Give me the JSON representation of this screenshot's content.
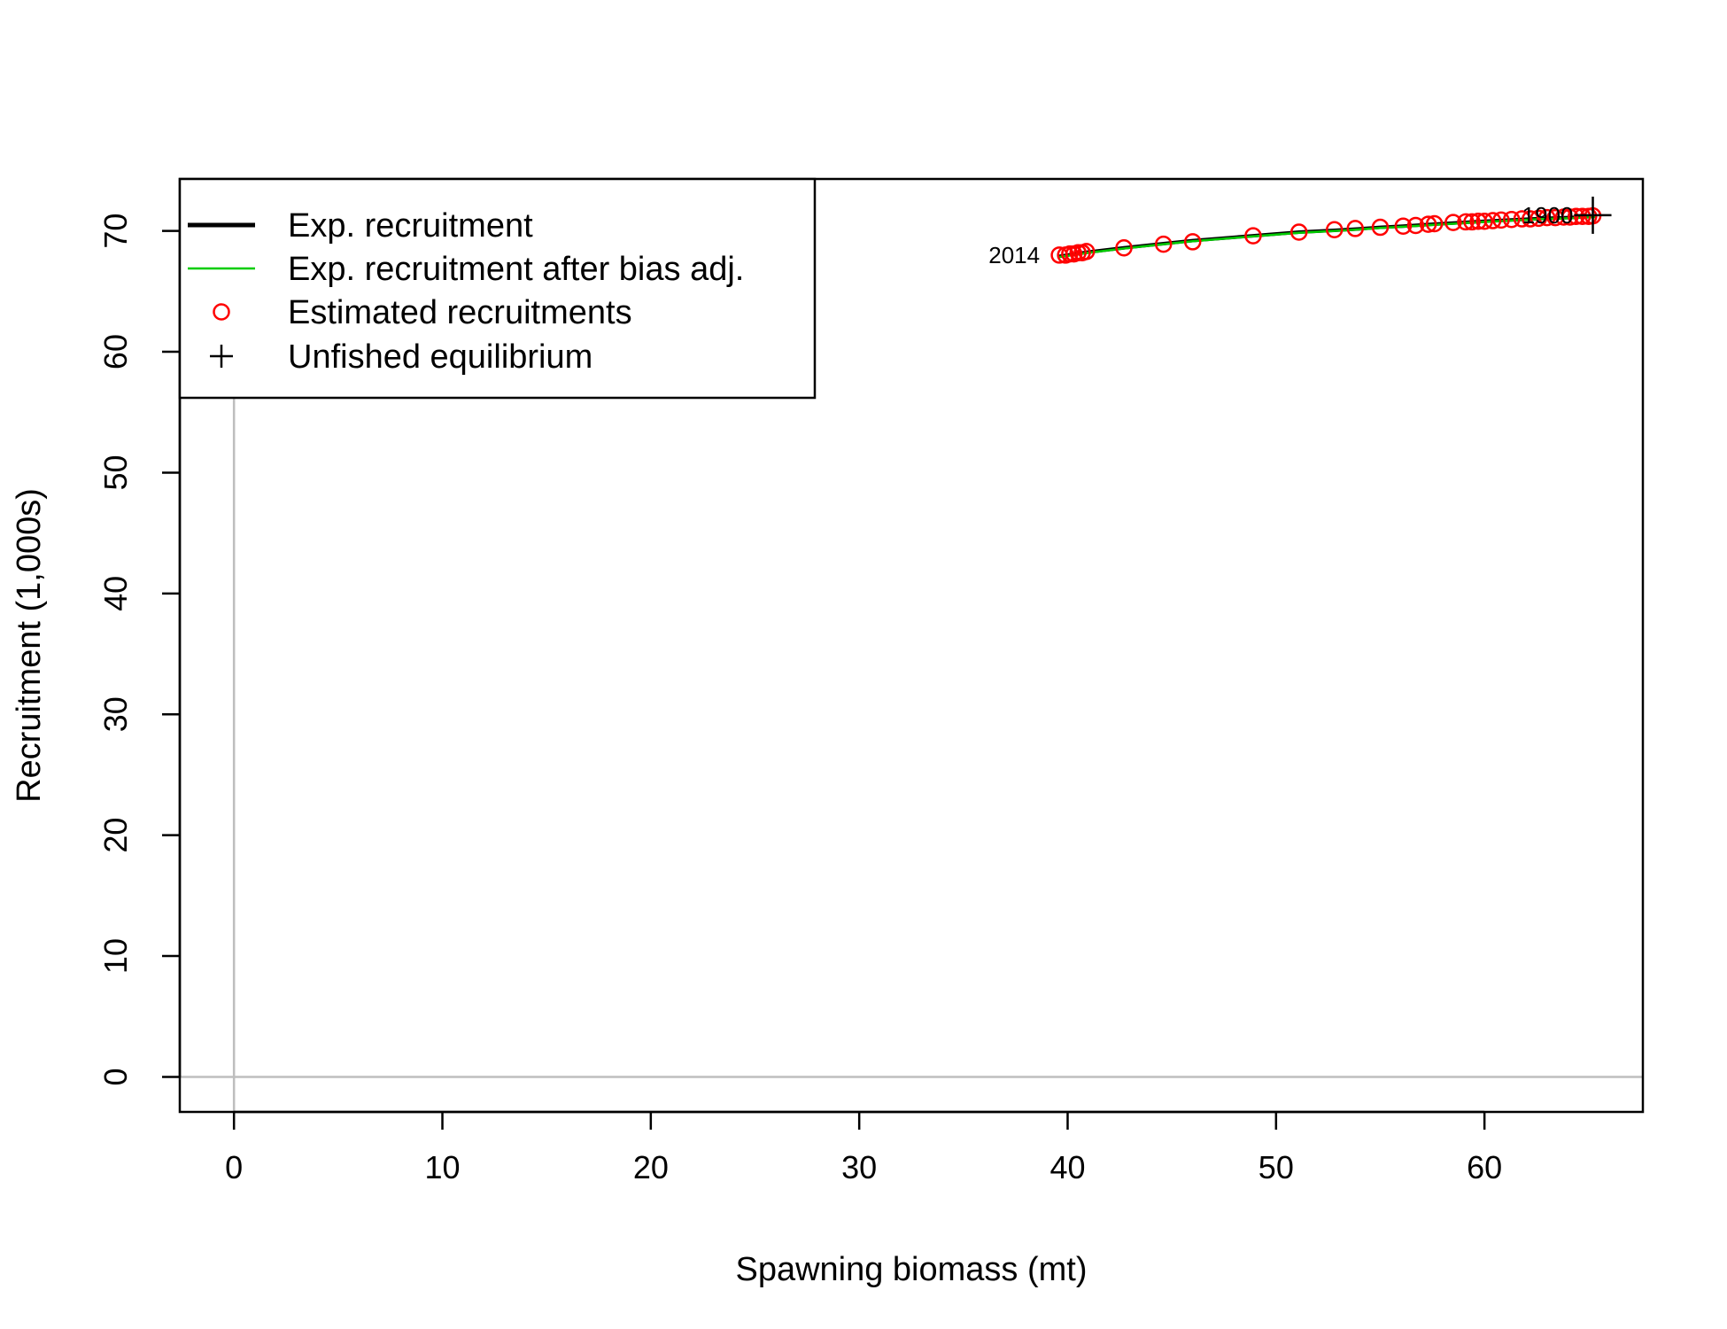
{
  "chart_data": {
    "type": "scatter",
    "xlabel": "Spawning biomass (mt)",
    "ylabel": "Recruitment (1,000s)",
    "xlim": [
      -2.6,
      67.6
    ],
    "ylim": [
      -2.9,
      74.3
    ],
    "x_ticks": [
      0,
      10,
      20,
      30,
      40,
      50,
      60
    ],
    "y_ticks": [
      0,
      10,
      20,
      30,
      40,
      50,
      60,
      70
    ],
    "grid": false,
    "reference_lines": {
      "x": 0,
      "y": 0,
      "color": "#bebebe"
    },
    "legend": {
      "position": "top-left",
      "entries": [
        {
          "label": "Exp. recruitment",
          "symbol": "line",
          "color": "#000000"
        },
        {
          "label": "Exp. recruitment after bias adj.",
          "symbol": "line",
          "color": "#00cd00"
        },
        {
          "label": "Estimated recruitments",
          "symbol": "circle",
          "color": "#ff0000"
        },
        {
          "label": "Unfished equilibrium",
          "symbol": "plus",
          "color": "#000000"
        }
      ]
    },
    "series": [
      {
        "name": "Exp. recruitment",
        "type": "line",
        "color": "#000000",
        "x": [
          39.6,
          41.0,
          42.7,
          44.6,
          46.0,
          48.9,
          51.1,
          52.8,
          53.8,
          55.0,
          56.1,
          57.5,
          59.0,
          60.0,
          61.5,
          63.0,
          64.0,
          65.3
        ],
        "y": [
          67.9,
          68.25,
          68.6,
          68.95,
          69.2,
          69.6,
          69.9,
          70.05,
          70.15,
          70.3,
          70.4,
          70.55,
          70.7,
          70.8,
          70.93,
          71.05,
          71.1,
          71.2
        ]
      },
      {
        "name": "Exp. recruitment after bias adj.",
        "type": "line",
        "color": "#00cd00",
        "x": [
          39.6,
          41.0,
          42.7,
          44.6,
          46.0,
          48.9,
          51.1,
          52.8,
          53.8,
          55.0,
          56.1,
          57.5,
          59.0,
          60.0,
          61.5,
          63.0,
          64.0,
          65.3
        ],
        "y": [
          67.85,
          68.2,
          68.55,
          68.9,
          69.15,
          69.55,
          69.85,
          70.0,
          70.1,
          70.25,
          70.35,
          70.5,
          70.65,
          70.75,
          70.88,
          71.0,
          71.05,
          71.15
        ]
      },
      {
        "name": "Estimated recruitments",
        "type": "scatter",
        "color": "#ff0000",
        "x": [
          39.6,
          39.9,
          40.1,
          40.3,
          40.5,
          40.7,
          40.9,
          42.7,
          44.6,
          46.0,
          48.9,
          51.1,
          52.8,
          53.8,
          55.0,
          56.1,
          56.7,
          57.3,
          57.6,
          58.5,
          59.1,
          59.4,
          59.7,
          60.0,
          60.4,
          60.8,
          61.3,
          61.8,
          62.2,
          62.6,
          63.0,
          63.4,
          63.8,
          64.1,
          64.4,
          64.7,
          65.0,
          65.2
        ],
        "y": [
          68.0,
          68.0,
          68.1,
          68.1,
          68.2,
          68.2,
          68.3,
          68.6,
          68.9,
          69.1,
          69.6,
          69.9,
          70.1,
          70.2,
          70.3,
          70.4,
          70.45,
          70.55,
          70.6,
          70.7,
          70.75,
          70.75,
          70.8,
          70.8,
          70.85,
          70.9,
          70.95,
          71.0,
          71.0,
          71.05,
          71.1,
          71.1,
          71.15,
          71.15,
          71.2,
          71.2,
          71.2,
          71.25
        ]
      },
      {
        "name": "Unfished equilibrium",
        "type": "scatter",
        "marker": "plus",
        "color": "#000000",
        "x": [
          65.2
        ],
        "y": [
          71.3
        ]
      }
    ],
    "annotations": [
      {
        "text": "2014",
        "x": 39.6,
        "y": 68.0,
        "anchor": "end"
      },
      {
        "text": "1900",
        "x": 65.2,
        "y": 71.3,
        "anchor": "end"
      }
    ]
  }
}
